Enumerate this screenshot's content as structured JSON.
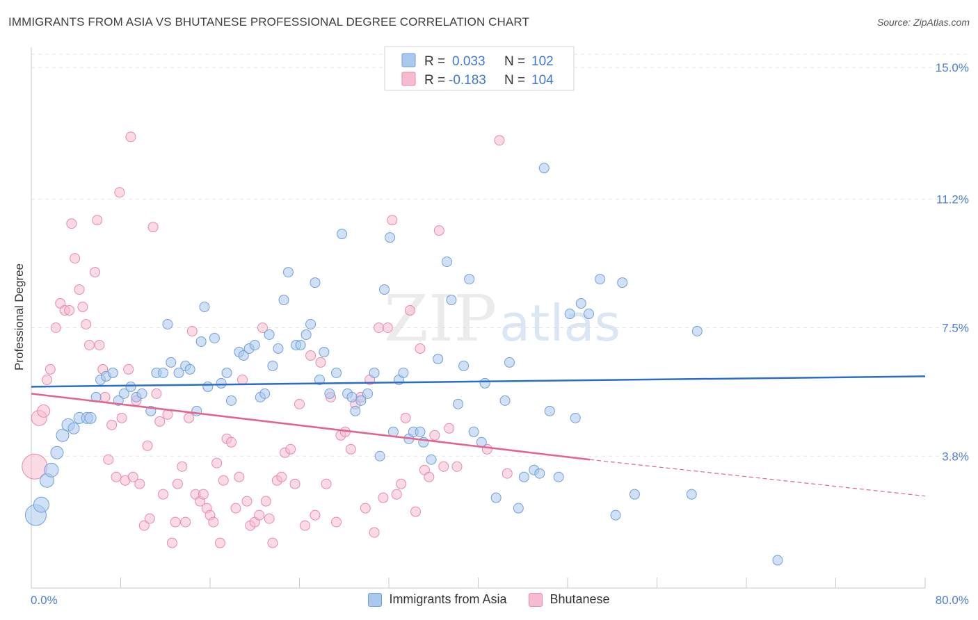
{
  "title": "IMMIGRANTS FROM ASIA VS BHUTANESE PROFESSIONAL DEGREE CORRELATION CHART",
  "source": "Source: ZipAtlas.com",
  "watermark": {
    "zip": "ZIP",
    "atlas": "atlas"
  },
  "colors": {
    "blue_fill": "#a9c8ee",
    "blue_stroke": "#6f9fdc",
    "blue_line": "#2b6cc9",
    "pink_fill": "#f6bccd",
    "pink_stroke": "#e98aa8",
    "pink_line": "#e0648e",
    "value_text": "#3f78d1"
  },
  "legend": {
    "rows": [
      {
        "r_label": "R = ",
        "r_value": "0.033",
        "n_label": "N = ",
        "n_value": "102"
      },
      {
        "r_label": "R = ",
        "r_value": "-0.183",
        "n_label": "N = ",
        "n_value": "104"
      }
    ]
  },
  "chart_data": {
    "type": "scatter",
    "title": "IMMIGRANTS FROM ASIA VS BHUTANESE PROFESSIONAL DEGREE CORRELATION CHART",
    "xlabel": "",
    "ylabel": "Professional Degree",
    "xlim": [
      0,
      80
    ],
    "ylim": [
      0,
      15.5
    ],
    "x_tick_labels": [
      "0.0%",
      "80.0%"
    ],
    "y_ticks": [
      3.8,
      7.5,
      11.2,
      15.0
    ],
    "y_tick_labels": [
      "3.8%",
      "7.5%",
      "11.2%",
      "15.0%"
    ],
    "grid": "horizontal dashed",
    "legend_position": "top-center",
    "series": [
      {
        "name": "Immigrants from Asia",
        "r": 0.033,
        "n": 102,
        "trend": {
          "x": [
            0,
            80
          ],
          "y": [
            5.8,
            6.1
          ]
        },
        "points": [
          [
            0.4,
            2.1,
            30
          ],
          [
            0.9,
            2.4,
            22
          ],
          [
            1.4,
            3.1,
            20
          ],
          [
            1.8,
            3.4,
            20
          ],
          [
            2.3,
            3.9,
            18
          ],
          [
            2.8,
            4.4,
            18
          ],
          [
            3.3,
            4.7,
            18
          ],
          [
            3.8,
            4.6,
            16
          ],
          [
            4.3,
            4.9,
            16
          ],
          [
            5.0,
            4.9,
            16
          ],
          [
            5.3,
            4.9,
            16
          ],
          [
            5.8,
            5.5,
            14
          ],
          [
            6.2,
            6.0,
            14
          ],
          [
            6.7,
            6.1,
            14
          ],
          [
            7.3,
            6.2,
            14
          ],
          [
            7.8,
            5.4,
            14
          ],
          [
            8.3,
            5.6,
            14
          ],
          [
            8.9,
            5.8,
            14
          ],
          [
            9.4,
            5.5,
            14
          ],
          [
            9.9,
            5.6,
            14
          ],
          [
            10.7,
            5.1,
            14
          ],
          [
            11.2,
            6.2,
            14
          ],
          [
            11.8,
            6.2,
            14
          ],
          [
            12.2,
            7.6,
            14
          ],
          [
            12.5,
            6.5,
            14
          ],
          [
            13.2,
            6.2,
            14
          ],
          [
            13.8,
            6.4,
            14
          ],
          [
            14.2,
            6.3,
            14
          ],
          [
            14.8,
            5.1,
            14
          ],
          [
            15.2,
            7.1,
            14
          ],
          [
            15.5,
            8.1,
            14
          ],
          [
            15.8,
            5.8,
            14
          ],
          [
            16.4,
            7.2,
            14
          ],
          [
            17.0,
            5.9,
            14
          ],
          [
            17.5,
            6.2,
            14
          ],
          [
            17.9,
            5.4,
            14
          ],
          [
            18.6,
            6.8,
            14
          ],
          [
            19.0,
            6.7,
            14
          ],
          [
            19.5,
            6.9,
            14
          ],
          [
            20.0,
            7.0,
            14
          ],
          [
            20.5,
            5.5,
            14
          ],
          [
            20.9,
            5.6,
            14
          ],
          [
            21.3,
            7.3,
            14
          ],
          [
            21.6,
            6.4,
            14
          ],
          [
            22.1,
            6.9,
            14
          ],
          [
            22.6,
            8.3,
            14
          ],
          [
            23.0,
            9.1,
            14
          ],
          [
            23.7,
            7.0,
            14
          ],
          [
            24.1,
            7.0,
            14
          ],
          [
            24.6,
            7.3,
            14
          ],
          [
            25.0,
            7.6,
            14
          ],
          [
            25.4,
            8.8,
            14
          ],
          [
            25.8,
            6.0,
            14
          ],
          [
            26.2,
            6.8,
            14
          ],
          [
            26.7,
            5.6,
            14
          ],
          [
            27.3,
            6.2,
            14
          ],
          [
            27.8,
            10.2,
            14
          ],
          [
            28.3,
            5.6,
            14
          ],
          [
            28.7,
            5.5,
            14
          ],
          [
            29.0,
            5.1,
            14
          ],
          [
            29.5,
            5.4,
            14
          ],
          [
            30.1,
            5.6,
            14
          ],
          [
            30.7,
            6.2,
            14
          ],
          [
            31.2,
            3.8,
            14
          ],
          [
            31.6,
            8.6,
            14
          ],
          [
            32.1,
            10.1,
            14
          ],
          [
            32.4,
            4.5,
            14
          ],
          [
            32.9,
            6.0,
            14
          ],
          [
            33.3,
            6.2,
            14
          ],
          [
            33.8,
            4.3,
            14
          ],
          [
            34.2,
            4.5,
            14
          ],
          [
            34.8,
            4.5,
            14
          ],
          [
            35.1,
            4.2,
            14
          ],
          [
            35.8,
            3.7,
            14
          ],
          [
            36.4,
            6.6,
            14
          ],
          [
            37.2,
            9.4,
            14
          ],
          [
            37.6,
            8.3,
            14
          ],
          [
            38.2,
            5.3,
            14
          ],
          [
            38.7,
            6.4,
            14
          ],
          [
            39.2,
            8.9,
            14
          ],
          [
            39.6,
            4.5,
            14
          ],
          [
            40.3,
            4.2,
            14
          ],
          [
            40.6,
            5.9,
            14
          ],
          [
            41.6,
            2.6,
            14
          ],
          [
            42.4,
            5.4,
            14
          ],
          [
            42.8,
            6.5,
            14
          ],
          [
            43.6,
            2.3,
            14
          ],
          [
            44.1,
            3.2,
            14
          ],
          [
            45.0,
            3.4,
            14
          ],
          [
            45.5,
            3.3,
            14
          ],
          [
            45.9,
            12.1,
            14
          ],
          [
            46.4,
            5.1,
            14
          ],
          [
            47.2,
            3.2,
            14
          ],
          [
            48.2,
            7.9,
            14
          ],
          [
            48.7,
            4.9,
            14
          ],
          [
            49.2,
            8.2,
            14
          ],
          [
            49.9,
            7.9,
            14
          ],
          [
            50.9,
            8.9,
            14
          ],
          [
            52.3,
            2.1,
            14
          ],
          [
            52.9,
            8.8,
            14
          ],
          [
            54.0,
            2.7,
            14
          ],
          [
            59.1,
            2.7,
            14
          ],
          [
            59.6,
            7.4,
            14
          ],
          [
            66.8,
            0.8,
            14
          ]
        ]
      },
      {
        "name": "Bhutanese",
        "r": -0.183,
        "n": 104,
        "trend": {
          "x": [
            0,
            50,
            80
          ],
          "y": [
            5.6,
            3.7,
            2.65
          ]
        },
        "points": [
          [
            0.3,
            3.5,
            36
          ],
          [
            0.7,
            4.9,
            22
          ],
          [
            1.1,
            5.1,
            18
          ],
          [
            1.4,
            6.0,
            14
          ],
          [
            1.7,
            6.3,
            14
          ],
          [
            2.2,
            7.5,
            14
          ],
          [
            2.6,
            8.2,
            14
          ],
          [
            3.0,
            8.0,
            14
          ],
          [
            3.4,
            8.0,
            14
          ],
          [
            3.6,
            10.5,
            14
          ],
          [
            3.9,
            9.5,
            14
          ],
          [
            4.3,
            8.6,
            14
          ],
          [
            4.6,
            8.1,
            14
          ],
          [
            4.9,
            7.6,
            14
          ],
          [
            5.2,
            7.0,
            14
          ],
          [
            5.7,
            9.1,
            14
          ],
          [
            5.9,
            10.6,
            14
          ],
          [
            6.1,
            7.0,
            14
          ],
          [
            6.4,
            6.3,
            14
          ],
          [
            6.6,
            5.5,
            14
          ],
          [
            6.9,
            3.7,
            14
          ],
          [
            7.2,
            4.7,
            14
          ],
          [
            7.6,
            3.2,
            14
          ],
          [
            7.9,
            11.4,
            14
          ],
          [
            8.1,
            4.9,
            14
          ],
          [
            8.4,
            3.1,
            14
          ],
          [
            8.7,
            6.3,
            14
          ],
          [
            8.9,
            13.0,
            14
          ],
          [
            9.1,
            3.2,
            14
          ],
          [
            9.4,
            5.4,
            14
          ],
          [
            9.7,
            3.0,
            14
          ],
          [
            10.1,
            1.8,
            14
          ],
          [
            10.4,
            4.1,
            14
          ],
          [
            10.6,
            2.0,
            14
          ],
          [
            10.9,
            10.4,
            14
          ],
          [
            11.2,
            5.6,
            14
          ],
          [
            11.5,
            4.8,
            14
          ],
          [
            11.8,
            2.7,
            14
          ],
          [
            12.2,
            5.0,
            14
          ],
          [
            12.6,
            1.3,
            14
          ],
          [
            12.9,
            1.9,
            14
          ],
          [
            13.1,
            3.0,
            14
          ],
          [
            13.5,
            3.5,
            14
          ],
          [
            13.8,
            1.9,
            14
          ],
          [
            14.1,
            4.9,
            14
          ],
          [
            14.4,
            7.4,
            14
          ],
          [
            14.7,
            2.7,
            14
          ],
          [
            15.1,
            2.5,
            14
          ],
          [
            15.4,
            2.7,
            14
          ],
          [
            15.7,
            2.3,
            14
          ],
          [
            16.0,
            2.1,
            14
          ],
          [
            16.3,
            1.9,
            14
          ],
          [
            16.6,
            3.6,
            14
          ],
          [
            16.9,
            1.3,
            14
          ],
          [
            17.2,
            3.1,
            14
          ],
          [
            17.5,
            4.3,
            14
          ],
          [
            17.9,
            4.2,
            14
          ],
          [
            18.3,
            2.3,
            14
          ],
          [
            18.6,
            3.2,
            14
          ],
          [
            18.9,
            6.0,
            14
          ],
          [
            19.3,
            2.5,
            14
          ],
          [
            19.6,
            1.8,
            14
          ],
          [
            20.0,
            1.9,
            14
          ],
          [
            20.4,
            2.1,
            14
          ],
          [
            20.7,
            7.5,
            14
          ],
          [
            21.0,
            2.5,
            14
          ],
          [
            21.3,
            2.0,
            14
          ],
          [
            21.6,
            1.3,
            14
          ],
          [
            22.0,
            3.1,
            14
          ],
          [
            22.4,
            3.2,
            14
          ],
          [
            22.7,
            3.9,
            14
          ],
          [
            23.2,
            4.0,
            14
          ],
          [
            23.6,
            3.0,
            14
          ],
          [
            24.0,
            5.3,
            14
          ],
          [
            24.5,
            1.8,
            14
          ],
          [
            25.0,
            6.7,
            14
          ],
          [
            25.4,
            2.1,
            14
          ],
          [
            25.9,
            6.5,
            14
          ],
          [
            26.4,
            3.0,
            14
          ],
          [
            26.8,
            5.5,
            14
          ],
          [
            27.3,
            1.9,
            14
          ],
          [
            27.7,
            4.4,
            14
          ],
          [
            28.1,
            4.5,
            14
          ],
          [
            28.6,
            4.0,
            14
          ],
          [
            29.0,
            5.3,
            14
          ],
          [
            29.5,
            5.5,
            14
          ],
          [
            29.9,
            2.3,
            14
          ],
          [
            30.3,
            6.0,
            14
          ],
          [
            30.7,
            1.6,
            14
          ],
          [
            31.1,
            7.5,
            14
          ],
          [
            31.5,
            2.6,
            14
          ],
          [
            31.9,
            7.5,
            14
          ],
          [
            32.3,
            10.6,
            14
          ],
          [
            32.7,
            2.7,
            14
          ],
          [
            33.1,
            3.0,
            14
          ],
          [
            33.5,
            4.9,
            14
          ],
          [
            33.9,
            8.0,
            14
          ],
          [
            34.4,
            2.2,
            14
          ],
          [
            34.8,
            6.9,
            14
          ],
          [
            35.2,
            3.4,
            14
          ],
          [
            35.6,
            3.2,
            14
          ],
          [
            36.1,
            4.4,
            14
          ],
          [
            36.5,
            10.3,
            14
          ],
          [
            36.9,
            3.5,
            14
          ],
          [
            37.4,
            4.6,
            14
          ],
          [
            38.1,
            3.5,
            14
          ],
          [
            40.8,
            4.0,
            14
          ],
          [
            41.9,
            12.9,
            14
          ],
          [
            42.6,
            3.3,
            14
          ]
        ]
      }
    ]
  }
}
